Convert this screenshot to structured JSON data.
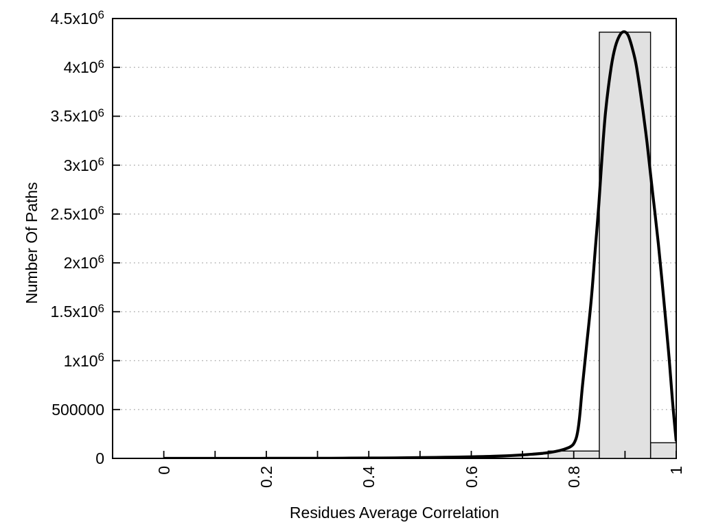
{
  "chart_data": {
    "type": "bar",
    "subtype": "histogram-with-fit-curve",
    "title": "",
    "xlabel": "Residues Average Correlation",
    "ylabel": "Number Of Paths",
    "xlim": [
      -0.1,
      1.0
    ],
    "ylim": [
      0,
      4500000
    ],
    "grid": "horizontal-dotted-at-y-ticks",
    "legend": "none",
    "x_ticks": {
      "all": [
        0,
        0.1,
        0.2,
        0.3,
        0.4,
        0.5,
        0.6,
        0.7,
        0.8,
        0.9,
        1.0
      ],
      "labeled": [
        {
          "value": 0,
          "label": "0"
        },
        {
          "value": 0.2,
          "label": "0.2"
        },
        {
          "value": 0.4,
          "label": "0.4"
        },
        {
          "value": 0.6,
          "label": "0.6"
        },
        {
          "value": 0.8,
          "label": "0.8"
        },
        {
          "value": 1,
          "label": "1"
        }
      ],
      "label_rotation_deg": -90
    },
    "y_ticks": [
      {
        "value": 0,
        "main": "0",
        "sup": ""
      },
      {
        "value": 500000,
        "main": "500000",
        "sup": ""
      },
      {
        "value": 1000000,
        "main": "1x10",
        "sup": "6"
      },
      {
        "value": 1500000,
        "main": "1.5x10",
        "sup": "6"
      },
      {
        "value": 2000000,
        "main": "2x10",
        "sup": "6"
      },
      {
        "value": 2500000,
        "main": "2.5x10",
        "sup": "6"
      },
      {
        "value": 3000000,
        "main": "3x10",
        "sup": "6"
      },
      {
        "value": 3500000,
        "main": "3.5x10",
        "sup": "6"
      },
      {
        "value": 4000000,
        "main": "4x10",
        "sup": "6"
      },
      {
        "value": 4500000,
        "main": "4.5x10",
        "sup": "6"
      }
    ],
    "bars": [
      {
        "x0": 0.75,
        "x1": 0.85,
        "value": 75000
      },
      {
        "x0": 0.85,
        "x1": 0.95,
        "value": 4360000
      },
      {
        "x0": 0.95,
        "x1": 1.0,
        "value": 160000
      }
    ],
    "curve": {
      "name": "fit-curve",
      "points": [
        [
          0.0,
          0
        ],
        [
          0.05,
          0
        ],
        [
          0.1,
          200
        ],
        [
          0.15,
          300
        ],
        [
          0.2,
          500
        ],
        [
          0.25,
          800
        ],
        [
          0.3,
          1200
        ],
        [
          0.35,
          2000
        ],
        [
          0.4,
          3200
        ],
        [
          0.45,
          5000
        ],
        [
          0.5,
          7500
        ],
        [
          0.55,
          11000
        ],
        [
          0.6,
          16000
        ],
        [
          0.64,
          21000
        ],
        [
          0.67,
          27000
        ],
        [
          0.7,
          35000
        ],
        [
          0.72,
          43000
        ],
        [
          0.74,
          52000
        ],
        [
          0.755,
          62000
        ],
        [
          0.77,
          77000
        ],
        [
          0.783,
          96000
        ],
        [
          0.793,
          118000
        ],
        [
          0.8,
          150000
        ],
        [
          0.806,
          230000
        ],
        [
          0.811,
          400000
        ],
        [
          0.817,
          740000
        ],
        [
          0.826,
          1200000
        ],
        [
          0.835,
          1670000
        ],
        [
          0.842,
          2140000
        ],
        [
          0.849,
          2600000
        ],
        [
          0.855,
          3070000
        ],
        [
          0.862,
          3540000
        ],
        [
          0.873,
          4000000
        ],
        [
          0.881,
          4210000
        ],
        [
          0.89,
          4330000
        ],
        [
          0.898,
          4365000
        ],
        [
          0.906,
          4330000
        ],
        [
          0.913,
          4220000
        ],
        [
          0.921,
          4050000
        ],
        [
          0.928,
          3820000
        ],
        [
          0.935,
          3560000
        ],
        [
          0.943,
          3230000
        ],
        [
          0.95,
          2900000
        ],
        [
          0.958,
          2530000
        ],
        [
          0.965,
          2200000
        ],
        [
          0.972,
          1830000
        ],
        [
          0.98,
          1380000
        ],
        [
          0.986,
          1030000
        ],
        [
          0.991,
          700000
        ],
        [
          0.995,
          450000
        ],
        [
          1.0,
          175000
        ]
      ]
    },
    "colors": {
      "background": "#ffffff",
      "bar_fill": "#e1e1e1",
      "bar_stroke": "#000000",
      "curve": "#000000",
      "grid": "#a8a8a8",
      "axis": "#000000",
      "text": "#000000"
    }
  }
}
